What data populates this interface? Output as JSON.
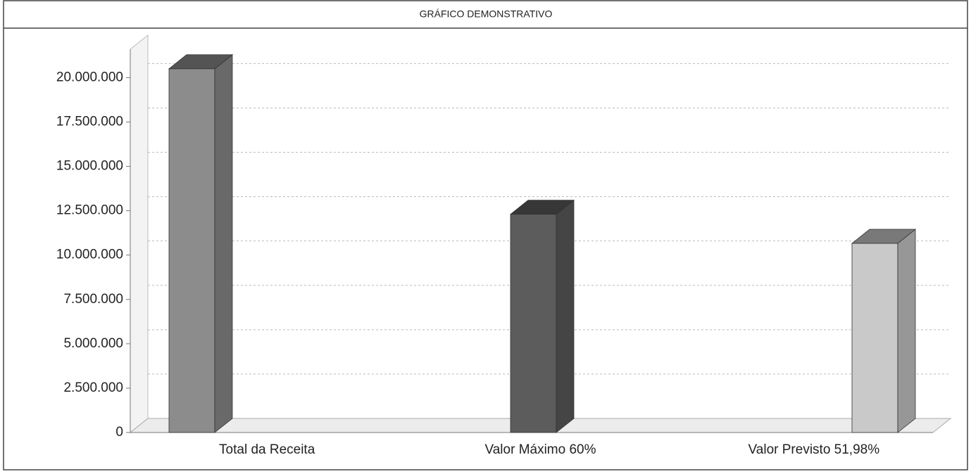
{
  "chart_data": {
    "type": "bar3d",
    "title": "GRÁFICO DEMONSTRATIVO",
    "categories": [
      "Total da Receita",
      "Valor Máximo 60%",
      "Valor Previsto 51,98%"
    ],
    "series": [
      {
        "name": null,
        "colors": [
          "#8c8c8c",
          "#5c5c5c",
          "#c9c9c9"
        ],
        "values": [
          20500000,
          12300000,
          10660000
        ]
      }
    ],
    "ylim": [
      0,
      21600000
    ],
    "yticks": [
      0,
      {
        "value": 2500000,
        "label": "2.500.000"
      },
      {
        "value": 5000000,
        "label": "5.000.000"
      },
      {
        "value": 7500000,
        "label": "7.500.000"
      },
      {
        "value": 10000000,
        "label": "10.000.000"
      },
      {
        "value": 12500000,
        "label": "12.500.000"
      },
      {
        "value": 15000000,
        "label": "15.000.000"
      },
      {
        "value": 17500000,
        "label": "17.500.000"
      },
      {
        "value": 20000000,
        "label": "20.000.000"
      }
    ],
    "grid": true
  }
}
